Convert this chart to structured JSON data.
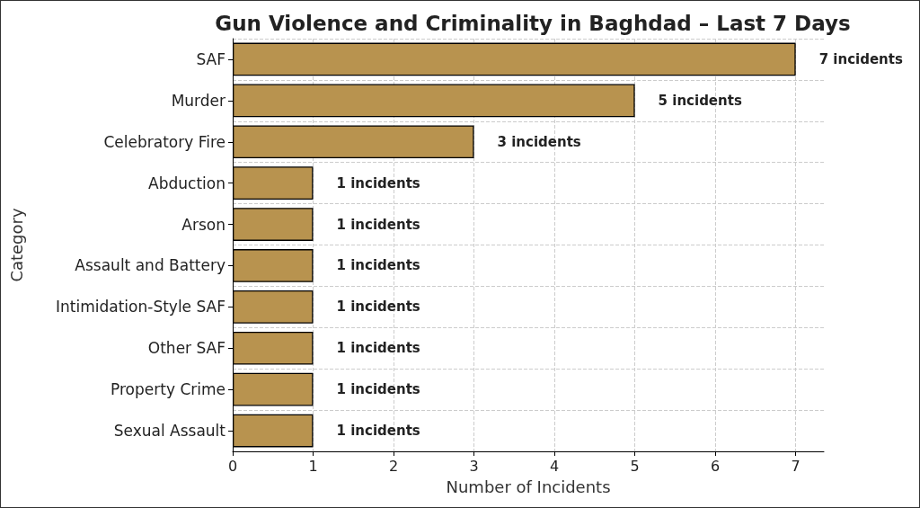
{
  "chart_data": {
    "type": "bar",
    "orientation": "horizontal",
    "title": "Gun Violence and Criminality in Baghdad – Last 7 Days",
    "xlabel": "Number of Incidents",
    "ylabel": "Category",
    "categories": [
      "SAF",
      "Murder",
      "Celebratory Fire",
      "Abduction",
      "Arson",
      "Assault and Battery",
      "Intimidation-Style SAF",
      "Other SAF",
      "Property Crime",
      "Sexual Assault"
    ],
    "values": [
      7,
      5,
      3,
      1,
      1,
      1,
      1,
      1,
      1,
      1
    ],
    "value_labels": [
      "7 incidents",
      "5 incidents",
      "3 incidents",
      "1 incidents",
      "1 incidents",
      "1 incidents",
      "1 incidents",
      "1 incidents",
      "1 incidents",
      "1 incidents"
    ],
    "color": "#b8934f",
    "xlim": [
      0,
      7.35
    ],
    "xticks": [
      0,
      1,
      2,
      3,
      4,
      5,
      6,
      7
    ],
    "grid": true
  }
}
